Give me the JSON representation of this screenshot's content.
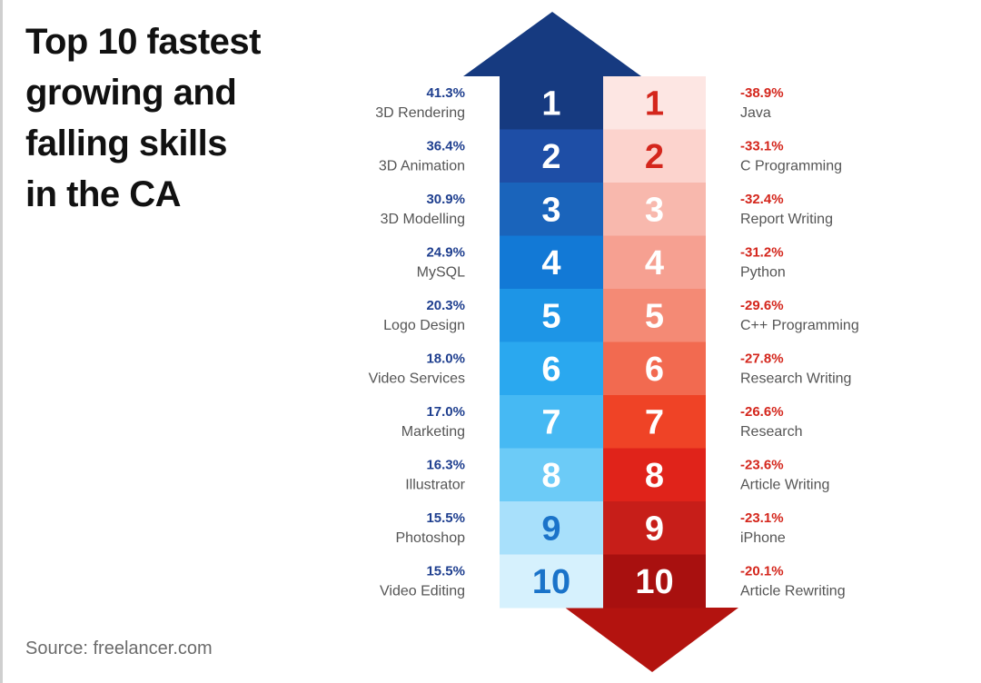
{
  "title_lines": [
    "Top 10 fastest",
    "growing and",
    "falling skills",
    "in the CA"
  ],
  "source": "Source: freelancer.com",
  "colors": {
    "growing_label": "#1f3f8f",
    "falling_label": "#d4261c"
  },
  "chart_data": {
    "type": "table",
    "title": "Top 10 fastest growing and falling skills in the CA",
    "ranks": [
      "1",
      "2",
      "3",
      "4",
      "5",
      "6",
      "7",
      "8",
      "9",
      "10"
    ],
    "growing": [
      {
        "rank": 1,
        "skill": "3D Rendering",
        "change": "41.3%",
        "value": 41.3
      },
      {
        "rank": 2,
        "skill": "3D Animation",
        "change": "36.4%",
        "value": 36.4
      },
      {
        "rank": 3,
        "skill": "3D Modelling",
        "change": "30.9%",
        "value": 30.9
      },
      {
        "rank": 4,
        "skill": "MySQL",
        "change": "24.9%",
        "value": 24.9
      },
      {
        "rank": 5,
        "skill": "Logo Design",
        "change": "20.3%",
        "value": 20.3
      },
      {
        "rank": 6,
        "skill": "Video Services",
        "change": "18.0%",
        "value": 18.0
      },
      {
        "rank": 7,
        "skill": "Marketing",
        "change": "17.0%",
        "value": 17.0
      },
      {
        "rank": 8,
        "skill": "Illustrator",
        "change": "16.3%",
        "value": 16.3
      },
      {
        "rank": 9,
        "skill": "Photoshop",
        "change": "15.5%",
        "value": 15.5
      },
      {
        "rank": 10,
        "skill": "Video Editing",
        "change": "15.5%",
        "value": 15.5
      }
    ],
    "falling": [
      {
        "rank": 1,
        "skill": "Java",
        "change": "-38.9%",
        "value": -38.9
      },
      {
        "rank": 2,
        "skill": "C Programming",
        "change": "-33.1%",
        "value": -33.1
      },
      {
        "rank": 3,
        "skill": "Report Writing",
        "change": "-32.4%",
        "value": -32.4
      },
      {
        "rank": 4,
        "skill": "Python",
        "change": "-31.2%",
        "value": -31.2
      },
      {
        "rank": 5,
        "skill": "C++ Programming",
        "change": "-29.6%",
        "value": -29.6
      },
      {
        "rank": 6,
        "skill": "Research Writing",
        "change": "-27.8%",
        "value": -27.8
      },
      {
        "rank": 7,
        "skill": "Research",
        "change": "-26.6%",
        "value": -26.6
      },
      {
        "rank": 8,
        "skill": "Article Writing",
        "change": "-23.6%",
        "value": -23.6
      },
      {
        "rank": 9,
        "skill": "iPhone",
        "change": "-23.1%",
        "value": -23.1
      },
      {
        "rank": 10,
        "skill": "Article Rewriting",
        "change": "-20.1%",
        "value": -20.1
      }
    ],
    "growing_cell_colors": [
      "#163a80",
      "#1e4ea6",
      "#1a64bb",
      "#1279d6",
      "#1d95e6",
      "#2aa8ef",
      "#46b9f3",
      "#6ccbf7",
      "#a8e0fb",
      "#d6f1fd"
    ],
    "growing_rank_text_colors": [
      "#ffffff",
      "#ffffff",
      "#ffffff",
      "#ffffff",
      "#ffffff",
      "#ffffff",
      "#ffffff",
      "#ffffff",
      "#1a73c9",
      "#1a73c9"
    ],
    "falling_cell_colors": [
      "#fde6e3",
      "#fcd3cd",
      "#f8b8ad",
      "#f6a091",
      "#f48a75",
      "#f26a50",
      "#ef4326",
      "#e0231a",
      "#c71e19",
      "#a8100f"
    ],
    "falling_rank_text_colors": [
      "#d4261c",
      "#d4261c",
      "#ffffff",
      "#ffffff",
      "#ffffff",
      "#ffffff",
      "#ffffff",
      "#ffffff",
      "#ffffff",
      "#ffffff"
    ],
    "up_arrow_color": "#163a80",
    "down_arrow_color": "#b3130f"
  }
}
